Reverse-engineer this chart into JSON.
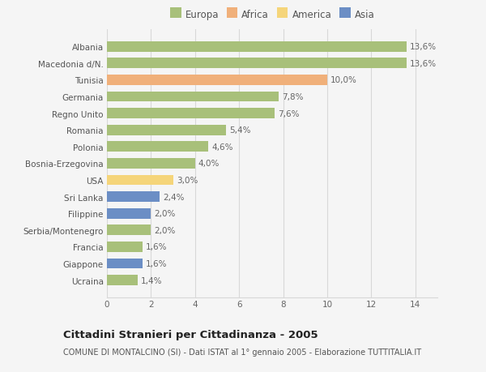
{
  "categories": [
    "Ucraina",
    "Giappone",
    "Francia",
    "Serbia/Montenegro",
    "Filippine",
    "Sri Lanka",
    "USA",
    "Bosnia-Erzegovina",
    "Polonia",
    "Romania",
    "Regno Unito",
    "Germania",
    "Tunisia",
    "Macedonia d/N.",
    "Albania"
  ],
  "values": [
    1.4,
    1.6,
    1.6,
    2.0,
    2.0,
    2.4,
    3.0,
    4.0,
    4.6,
    5.4,
    7.6,
    7.8,
    10.0,
    13.6,
    13.6
  ],
  "labels": [
    "1,4%",
    "1,6%",
    "1,6%",
    "2,0%",
    "2,0%",
    "2,4%",
    "3,0%",
    "4,0%",
    "4,6%",
    "5,4%",
    "7,6%",
    "7,8%",
    "10,0%",
    "13,6%",
    "13,6%"
  ],
  "colors": [
    "#a8c07a",
    "#6b8ec5",
    "#a8c07a",
    "#a8c07a",
    "#6b8ec5",
    "#6b8ec5",
    "#f5d57a",
    "#a8c07a",
    "#a8c07a",
    "#a8c07a",
    "#a8c07a",
    "#a8c07a",
    "#f0b07a",
    "#a8c07a",
    "#a8c07a"
  ],
  "legend_labels": [
    "Europa",
    "Africa",
    "America",
    "Asia"
  ],
  "legend_colors": [
    "#a8c07a",
    "#f0b07a",
    "#f5d57a",
    "#6b8ec5"
  ],
  "title": "Cittadini Stranieri per Cittadinanza - 2005",
  "subtitle": "COMUNE DI MONTALCINO (SI) - Dati ISTAT al 1° gennaio 2005 - Elaborazione TUTTITALIA.IT",
  "xlim": [
    0,
    15
  ],
  "xticks": [
    0,
    2,
    4,
    6,
    8,
    10,
    12,
    14
  ],
  "background_color": "#f5f5f5",
  "bar_height": 0.62,
  "grid_color": "#d8d8d8",
  "label_fontsize": 7.5,
  "tick_fontsize": 7.5,
  "title_fontsize": 9.5,
  "subtitle_fontsize": 7.0,
  "legend_fontsize": 8.5
}
